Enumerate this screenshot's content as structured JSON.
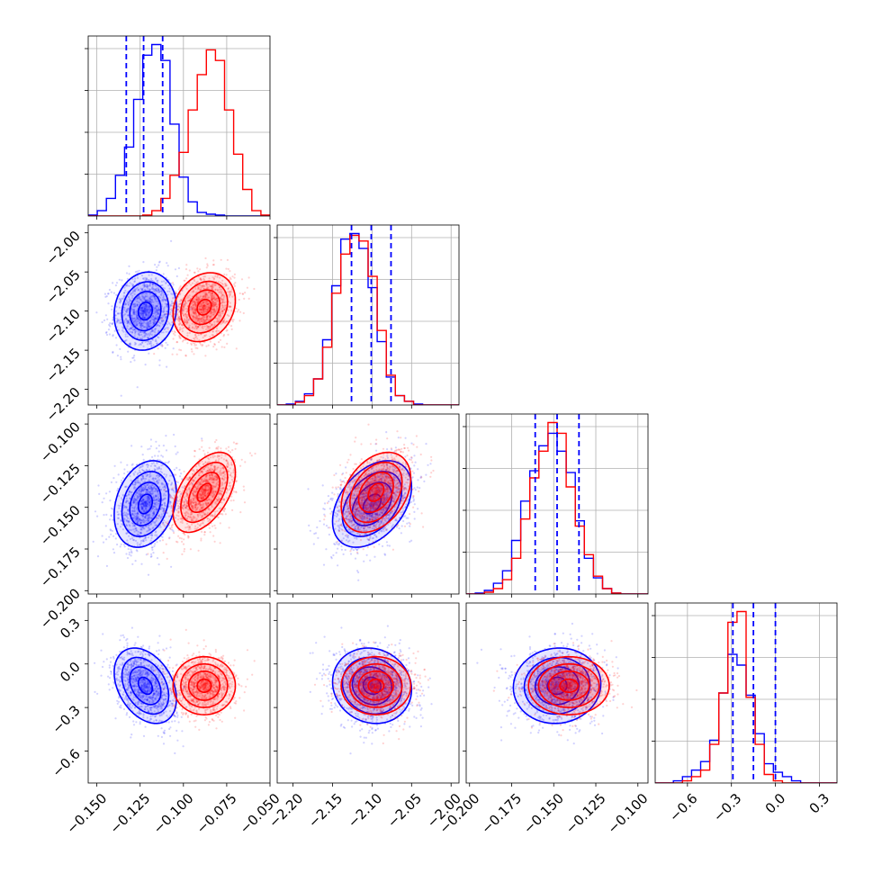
{
  "chart_data": {
    "type": "corner",
    "params": [
      {
        "range": [
          -0.155,
          -0.05
        ],
        "ticks": [
          -0.15,
          -0.125,
          -0.1,
          -0.075,
          -0.05
        ],
        "tick_labels": [
          "−0.150",
          "−0.125",
          "−0.100",
          "−0.075",
          "−0.050"
        ]
      },
      {
        "range": [
          -2.22,
          -1.99
        ],
        "ticks": [
          -2.2,
          -2.15,
          -2.1,
          -2.05,
          -2.0
        ],
        "tick_labels": [
          "−2.20",
          "−2.15",
          "−2.10",
          "−2.05",
          "−2.00"
        ]
      },
      {
        "range": [
          -0.202,
          -0.094
        ],
        "ticks": [
          -0.2,
          -0.175,
          -0.15,
          -0.125,
          -0.1
        ],
        "tick_labels": [
          "−0.200",
          "−0.175",
          "−0.150",
          "−0.125",
          "−0.100"
        ]
      },
      {
        "range": [
          -0.82,
          0.42
        ],
        "ticks": [
          -0.6,
          -0.3,
          0.0,
          0.3
        ],
        "tick_labels": [
          "−0.6",
          "−0.3",
          "0.0",
          "0.3"
        ]
      }
    ],
    "series": [
      {
        "color": "#0000ff",
        "mean": [
          -0.122,
          -2.1,
          -0.148,
          -0.15
        ],
        "sigma": [
          0.009,
          0.025,
          0.013,
          0.13
        ],
        "corr": {
          "0-1": 0.1,
          "0-2": 0.25,
          "0-3": -0.35,
          "1-2": 0.4,
          "1-3": -0.1,
          "2-3": 0.05
        }
      },
      {
        "color": "#ff0000",
        "mean": [
          -0.088,
          -2.095,
          -0.141,
          -0.15
        ],
        "sigma": [
          0.009,
          0.022,
          0.012,
          0.1
        ],
        "corr": {
          "0-1": 0.2,
          "0-2": 0.5,
          "0-3": 0.0,
          "1-2": 0.35,
          "1-3": 0.0,
          "2-3": 0.0
        }
      }
    ],
    "quantile_lines": [
      {
        "color": "#0000ff",
        "values": [
          -0.133,
          -0.123,
          -0.112
        ]
      },
      {
        "color": "#0000ff",
        "values": [
          -2.126,
          -2.101,
          -2.076
        ]
      },
      {
        "color": "#0000ff",
        "values": [
          -0.161,
          -0.148,
          -0.135
        ]
      },
      {
        "color": "#0000ff",
        "values": [
          -0.29,
          -0.15,
          0.0
        ]
      }
    ],
    "histograms": [
      {
        "edges_from": -0.155,
        "bin_width": 0.00525,
        "blue": [
          0.05,
          0.3,
          1.0,
          2.3,
          3.9,
          6.6,
          9.1,
          9.7,
          8.8,
          5.2,
          2.2,
          0.8,
          0.2,
          0.1,
          0.05,
          0,
          0,
          0,
          0,
          0
        ],
        "red": [
          0,
          0,
          0,
          0,
          0,
          0,
          0.05,
          0.3,
          1.0,
          2.3,
          3.6,
          6.0,
          8.0,
          9.4,
          8.8,
          6.0,
          3.5,
          1.5,
          0.3,
          0.05
        ]
      },
      {
        "edges_from": -2.22,
        "bin_width": 0.0115,
        "blue": [
          0,
          0.05,
          0.2,
          0.6,
          1.4,
          3.5,
          6.4,
          8.9,
          9.2,
          8.4,
          6.3,
          3.4,
          1.5,
          0.5,
          0.2,
          0.05,
          0,
          0,
          0,
          0
        ],
        "red": [
          0,
          0,
          0.15,
          0.5,
          1.4,
          3.1,
          6.0,
          8.1,
          9.1,
          8.8,
          6.9,
          4.0,
          1.6,
          0.5,
          0.2,
          0,
          0,
          0,
          0,
          0
        ]
      },
      {
        "edges_from": -0.202,
        "bin_width": 0.0054,
        "blue": [
          0,
          0.05,
          0.2,
          0.6,
          1.3,
          3.0,
          5.2,
          6.9,
          8.3,
          9.0,
          8.0,
          6.8,
          4.1,
          2.0,
          0.9,
          0.3,
          0.05,
          0,
          0,
          0
        ],
        "red": [
          0,
          0,
          0.1,
          0.3,
          0.8,
          2.0,
          4.2,
          6.5,
          8.0,
          9.6,
          9.0,
          6.0,
          3.8,
          2.2,
          1.0,
          0.3,
          0.05,
          0,
          0,
          0
        ]
      },
      {
        "edges_from": -0.82,
        "bin_width": 0.062,
        "blue": [
          0,
          0,
          0.1,
          0.3,
          0.6,
          1.0,
          2.0,
          4.2,
          6.0,
          5.5,
          4.1,
          2.3,
          0.9,
          0.5,
          0.3,
          0.1,
          0,
          0,
          0,
          0
        ],
        "red": [
          0,
          0,
          0,
          0.1,
          0.3,
          0.6,
          1.8,
          4.2,
          7.5,
          8.0,
          4.0,
          1.8,
          0.4,
          0.1,
          0,
          0,
          0,
          0,
          0,
          0
        ]
      }
    ]
  }
}
